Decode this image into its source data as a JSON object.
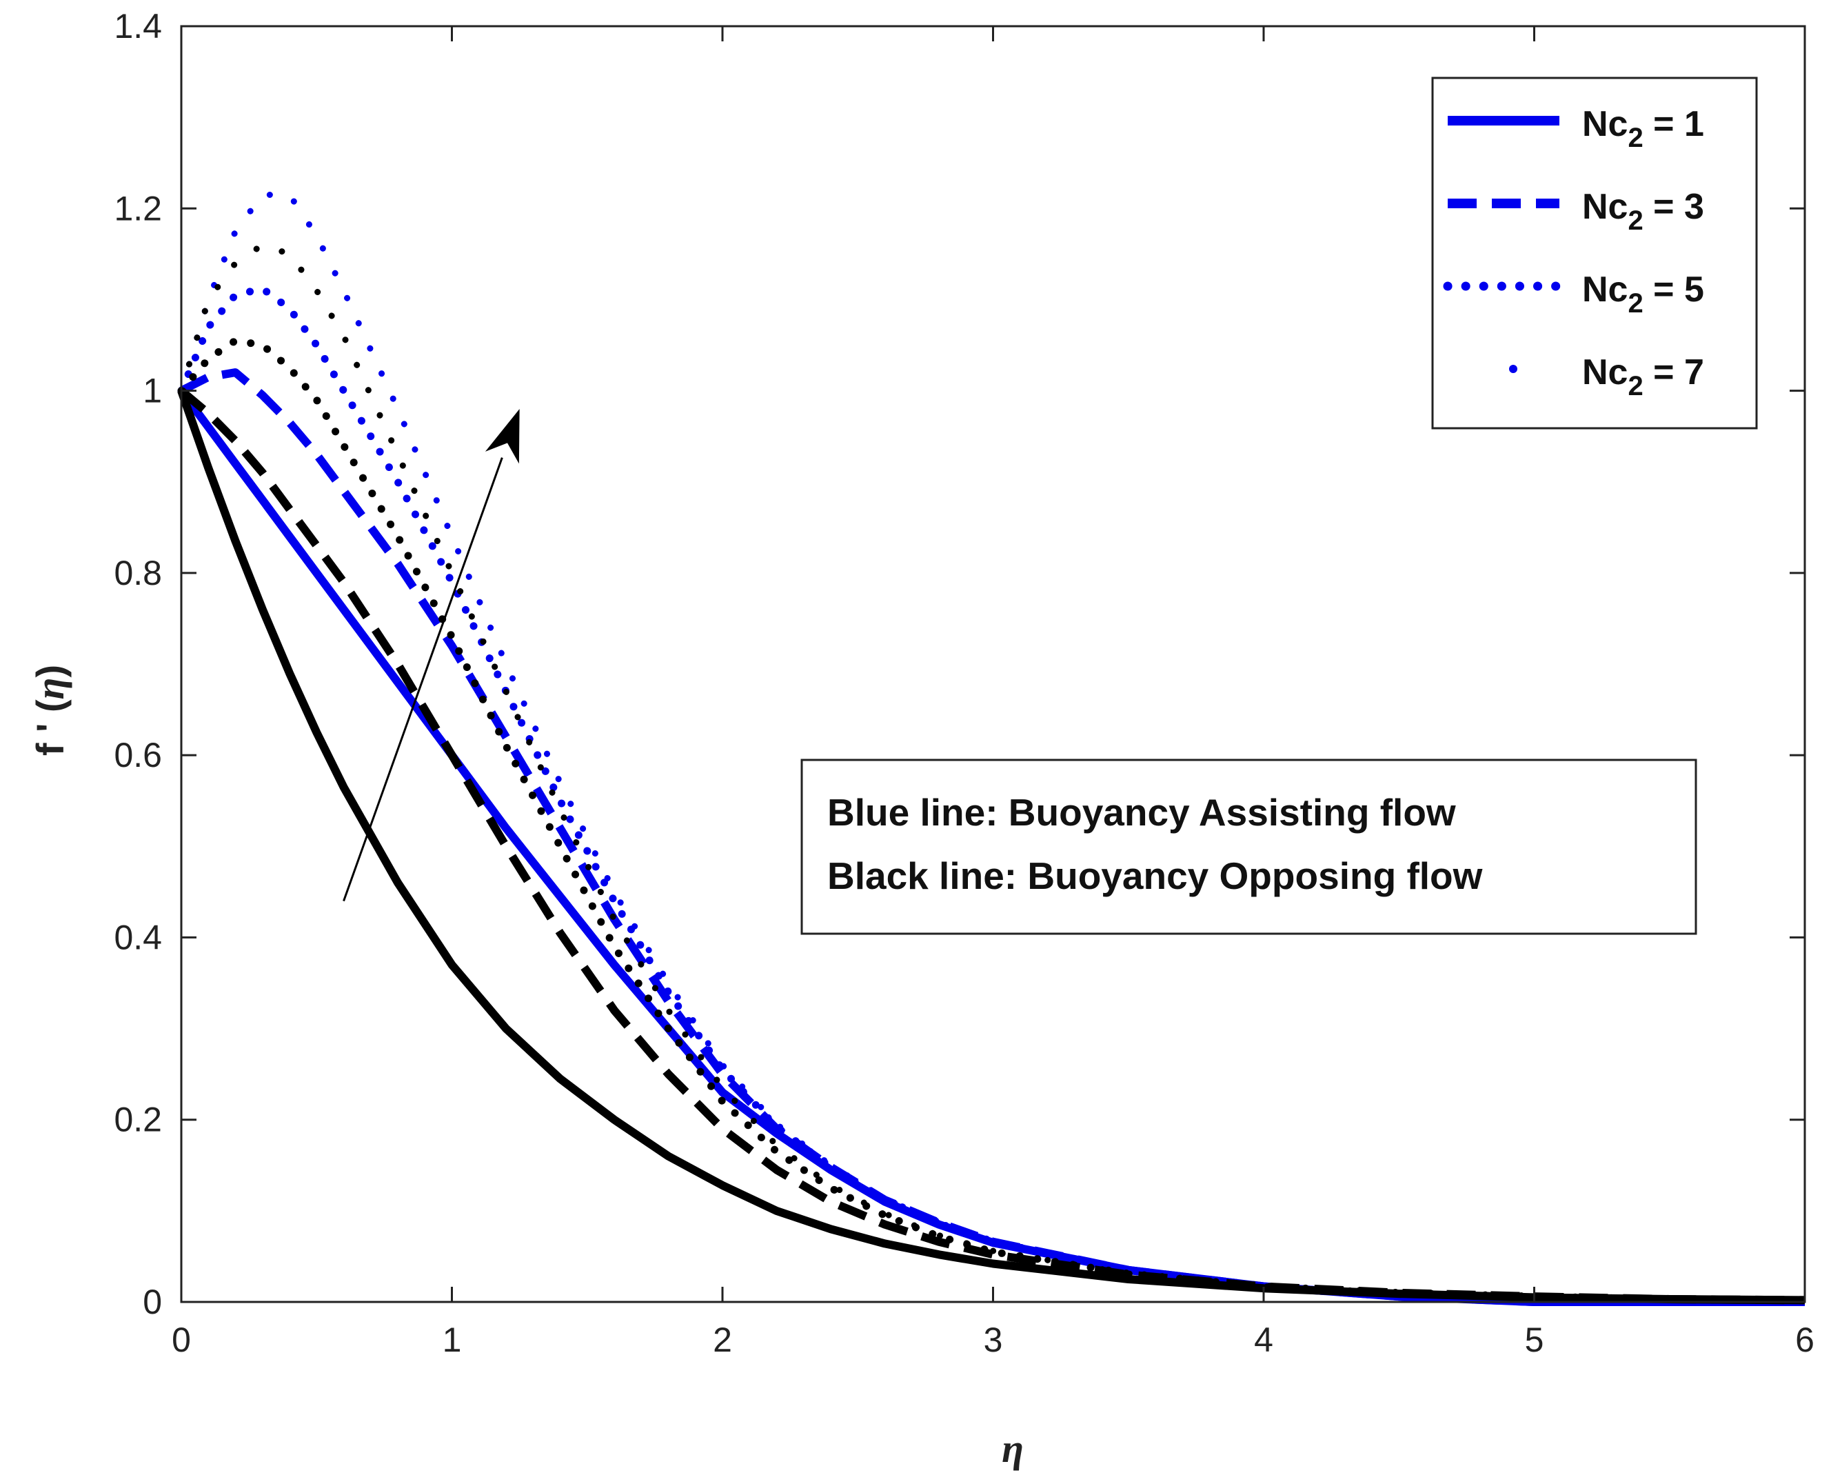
{
  "chart_data": {
    "type": "line",
    "xlabel": "η",
    "ylabel": {
      "text": "f ' (",
      "var": "η",
      "close": ")"
    },
    "xlim": [
      0,
      6
    ],
    "ylim": [
      0,
      1.4
    ],
    "x_ticks": [
      "0",
      "1",
      "2",
      "3",
      "4",
      "5",
      "6"
    ],
    "y_ticks": [
      "0",
      "0.2",
      "0.4",
      "0.6",
      "0.8",
      "1",
      "1.2",
      "1.4"
    ],
    "grid": false,
    "legend_position": "top-right",
    "legend": [
      {
        "base": "Nc",
        "sub": "2",
        "rest": " = 1",
        "style": "solid"
      },
      {
        "base": "Nc",
        "sub": "2",
        "rest": " = 3",
        "style": "dashed"
      },
      {
        "base": "Nc",
        "sub": "2",
        "rest": " = 5",
        "style": "dotted"
      },
      {
        "base": "Nc",
        "sub": "2",
        "rest": " = 7",
        "style": "point"
      }
    ],
    "annotations": [
      "Blue line: Buoyancy Assisting flow",
      "Black line: Buoyancy Opposing flow"
    ],
    "arrow": {
      "from": [
        0.6,
        0.44
      ],
      "to": [
        1.25,
        0.98
      ]
    },
    "x": [
      0,
      0.1,
      0.2,
      0.3,
      0.4,
      0.5,
      0.6,
      0.8,
      1.0,
      1.2,
      1.4,
      1.6,
      1.8,
      2.0,
      2.2,
      2.4,
      2.6,
      2.8,
      3.0,
      3.5,
      4.0,
      4.5,
      5.0,
      5.5,
      6.0
    ],
    "series": [
      {
        "color": "#0000ee",
        "style": "solid",
        "values": [
          1.0,
          0.96,
          0.92,
          0.88,
          0.84,
          0.8,
          0.76,
          0.68,
          0.6,
          0.52,
          0.445,
          0.37,
          0.3,
          0.23,
          0.185,
          0.145,
          0.11,
          0.085,
          0.065,
          0.035,
          0.017,
          0.006,
          0.0,
          0.0,
          0.0
        ]
      },
      {
        "color": "#0000ee",
        "style": "dashed",
        "values": [
          1.0,
          1.015,
          1.02,
          0.995,
          0.965,
          0.93,
          0.89,
          0.81,
          0.72,
          0.62,
          0.52,
          0.42,
          0.33,
          0.25,
          0.19,
          0.148,
          0.112,
          0.087,
          0.066,
          0.035,
          0.017,
          0.006,
          0.0,
          0.0,
          0.0
        ]
      },
      {
        "color": "#0000ee",
        "style": "dotted",
        "values": [
          1.0,
          1.07,
          1.105,
          1.112,
          1.09,
          1.05,
          1.0,
          0.9,
          0.79,
          0.67,
          0.55,
          0.44,
          0.34,
          0.255,
          0.192,
          0.148,
          0.112,
          0.087,
          0.066,
          0.035,
          0.017,
          0.006,
          0.0,
          0.0,
          0.0
        ]
      },
      {
        "color": "#0000ee",
        "style": "point",
        "values": [
          1.0,
          1.1,
          1.175,
          1.215,
          1.215,
          1.17,
          1.11,
          0.98,
          0.84,
          0.7,
          0.57,
          0.45,
          0.35,
          0.26,
          0.195,
          0.15,
          0.113,
          0.087,
          0.066,
          0.035,
          0.017,
          0.006,
          0.0,
          0.0,
          0.0
        ]
      },
      {
        "color": "#000000",
        "style": "solid",
        "values": [
          1.0,
          0.915,
          0.835,
          0.76,
          0.69,
          0.625,
          0.565,
          0.46,
          0.37,
          0.3,
          0.245,
          0.2,
          0.16,
          0.128,
          0.1,
          0.08,
          0.064,
          0.052,
          0.042,
          0.025,
          0.015,
          0.009,
          0.005,
          0.003,
          0.002
        ]
      },
      {
        "color": "#000000",
        "style": "dashed",
        "values": [
          1.0,
          0.975,
          0.945,
          0.91,
          0.87,
          0.83,
          0.79,
          0.7,
          0.6,
          0.5,
          0.405,
          0.32,
          0.25,
          0.19,
          0.145,
          0.11,
          0.085,
          0.066,
          0.052,
          0.03,
          0.017,
          0.01,
          0.006,
          0.003,
          0.002
        ]
      },
      {
        "color": "#000000",
        "style": "dotted",
        "values": [
          1.0,
          1.035,
          1.055,
          1.05,
          1.025,
          0.99,
          0.94,
          0.84,
          0.73,
          0.61,
          0.5,
          0.39,
          0.3,
          0.22,
          0.165,
          0.125,
          0.095,
          0.072,
          0.055,
          0.031,
          0.017,
          0.01,
          0.006,
          0.003,
          0.002
        ]
      },
      {
        "color": "#000000",
        "style": "point",
        "values": [
          1.0,
          1.1,
          1.14,
          1.16,
          1.15,
          1.11,
          1.06,
          0.93,
          0.8,
          0.67,
          0.54,
          0.42,
          0.32,
          0.235,
          0.172,
          0.128,
          0.097,
          0.073,
          0.056,
          0.031,
          0.017,
          0.01,
          0.006,
          0.003,
          0.002
        ]
      }
    ]
  }
}
